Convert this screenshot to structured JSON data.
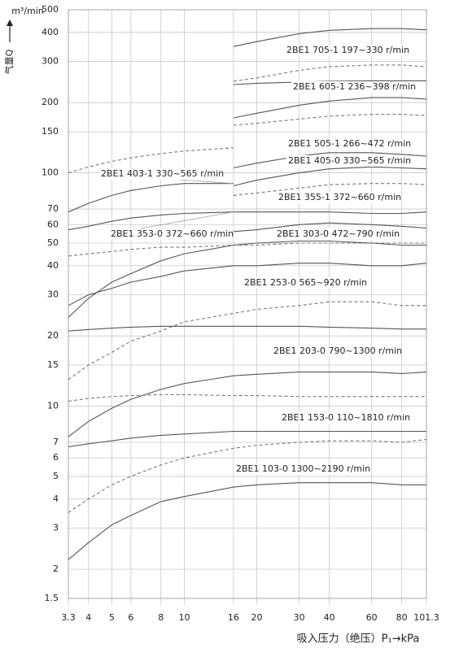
{
  "chart_data": {
    "type": "line",
    "log_x": true,
    "log_y": true,
    "grid": true,
    "ylabel_unit": "m³/min",
    "ylabel": "气量Q",
    "xlabel": "吸入压力（绝压）P₁→kPa",
    "x": [
      3.3,
      4,
      5,
      6,
      8,
      10,
      16,
      20,
      30,
      40,
      60,
      80,
      101.3
    ],
    "xlim": [
      3.3,
      101.3
    ],
    "xticks": [
      3.3,
      4,
      5,
      6,
      8,
      10,
      16,
      20,
      30,
      40,
      60,
      80,
      101.3
    ],
    "ylim": [
      1.5,
      500
    ],
    "yticks": [
      1.5,
      2,
      3,
      4,
      5,
      6,
      7,
      10,
      15,
      20,
      30,
      40,
      50,
      60,
      70,
      100,
      150,
      200,
      300,
      400,
      500
    ],
    "series": [
      {
        "name": "2BE1 705-1 197~330 r/min",
        "color": "#555555",
        "style": "solid",
        "values": [
          null,
          null,
          null,
          null,
          null,
          null,
          348,
          365,
          395,
          408,
          415,
          415,
          410
        ]
      },
      {
        "color": "#777777",
        "style": "dashed",
        "values": [
          null,
          null,
          null,
          null,
          null,
          null,
          247,
          255,
          275,
          285,
          290,
          290,
          285
        ]
      },
      {
        "name": "2BE1 605-1 236~398 r/min",
        "color": "#555555",
        "style": "solid",
        "values": [
          null,
          null,
          null,
          null,
          null,
          null,
          239,
          242,
          245,
          247,
          248,
          248,
          248
        ]
      },
      {
        "name": "2BE1 505-1 266~472 r/min",
        "color": "#555555",
        "style": "solid",
        "values": [
          null,
          null,
          null,
          null,
          null,
          null,
          172,
          180,
          195,
          203,
          210,
          210,
          207
        ]
      },
      {
        "color": "#777777",
        "style": "dashed",
        "values": [
          null,
          null,
          null,
          null,
          null,
          null,
          160,
          163,
          170,
          175,
          178,
          178,
          176
        ]
      },
      {
        "name": "2BE1 405-0 330~565 r/min",
        "color": "#555555",
        "style": "solid",
        "values": [
          null,
          null,
          null,
          null,
          null,
          null,
          105,
          110,
          118,
          122,
          122,
          120,
          118
        ]
      },
      {
        "name": "2BE1 355-1 372~660 r/min",
        "color": "#555555",
        "style": "solid",
        "values": [
          null,
          null,
          null,
          null,
          null,
          null,
          88,
          93,
          100,
          104,
          106,
          105,
          104
        ]
      },
      {
        "color": "#777777",
        "style": "dashed",
        "values": [
          null,
          null,
          null,
          null,
          null,
          null,
          80,
          82,
          86,
          89,
          90,
          90,
          89
        ]
      },
      {
        "name": "2BE1 303-0 472~790 r/min",
        "color": "#555555",
        "style": "solid",
        "values": [
          null,
          null,
          null,
          null,
          null,
          null,
          56,
          57,
          60,
          61,
          60,
          59,
          58
        ]
      },
      {
        "name": "2BE1 403-1 330~565 r/min",
        "color": "#555555",
        "style": "solid",
        "values": [
          68,
          74,
          80,
          84,
          88,
          90,
          90,
          null,
          null,
          null,
          null,
          null,
          null
        ]
      },
      {
        "color": "#777777",
        "style": "dashed",
        "values": [
          100,
          106,
          112,
          116,
          121,
          124,
          128,
          null,
          null,
          null,
          null,
          null,
          null
        ]
      },
      {
        "name": "2BE1 353-0 372~660 r/min",
        "color": "#555555",
        "style": "solid",
        "values": [
          57,
          59,
          62,
          64,
          66,
          67,
          68,
          68,
          68,
          68,
          67,
          67,
          68
        ]
      },
      {
        "color": "#777777",
        "style": "dashed",
        "values": [
          44,
          45,
          46,
          47,
          48,
          48,
          49,
          49,
          50,
          50,
          50,
          50,
          50
        ]
      },
      {
        "name": "2BE1 253-0 565~920 r/min",
        "color": "#555555",
        "style": "solid",
        "values": [
          24,
          29,
          34,
          37,
          42,
          45,
          49,
          50,
          51,
          51,
          50,
          49,
          49
        ]
      },
      {
        "color": "#555555",
        "style": "solid",
        "values": [
          27,
          30,
          32,
          34,
          36,
          38,
          40,
          40,
          41,
          41,
          40,
          40,
          41
        ]
      },
      {
        "color": "#777777",
        "style": "dashed",
        "values": [
          13,
          15,
          17,
          19,
          21,
          23,
          25,
          26,
          27,
          28,
          28,
          27,
          27
        ]
      },
      {
        "name": "2BE1 203-0 790~1300 r/min",
        "color": "#555555",
        "style": "solid",
        "values": [
          21,
          21.3,
          21.6,
          21.8,
          22,
          22,
          22,
          22,
          22,
          21.8,
          21.6,
          21.4,
          21.4
        ]
      },
      {
        "name": "2BE1 153-0 110~1810 r/min",
        "color": "#555555",
        "style": "solid",
        "values": [
          7.4,
          8.6,
          9.8,
          10.7,
          11.8,
          12.5,
          13.5,
          13.7,
          14,
          14,
          14,
          13.8,
          14
        ]
      },
      {
        "color": "#777777",
        "style": "dashed",
        "values": [
          10.5,
          10.8,
          11,
          11.1,
          11.2,
          11.2,
          11.1,
          11.1,
          11,
          11,
          11,
          11,
          11
        ]
      },
      {
        "color": "#555555",
        "style": "solid",
        "values": [
          6.7,
          6.9,
          7.1,
          7.3,
          7.5,
          7.6,
          7.8,
          7.8,
          7.8,
          7.8,
          7.8,
          7.8,
          7.8
        ]
      },
      {
        "color": "#777777",
        "style": "dashed",
        "values": [
          3.5,
          4,
          4.6,
          5,
          5.6,
          6,
          6.6,
          6.8,
          7,
          7.1,
          7.1,
          7,
          7.2
        ]
      },
      {
        "name": "2BE1 103-0 1300~2190 r/min",
        "color": "#555555",
        "style": "solid",
        "values": [
          2.2,
          2.6,
          3.1,
          3.4,
          3.9,
          4.1,
          4.5,
          4.6,
          4.7,
          4.7,
          4.7,
          4.6,
          4.6
        ]
      }
    ]
  }
}
